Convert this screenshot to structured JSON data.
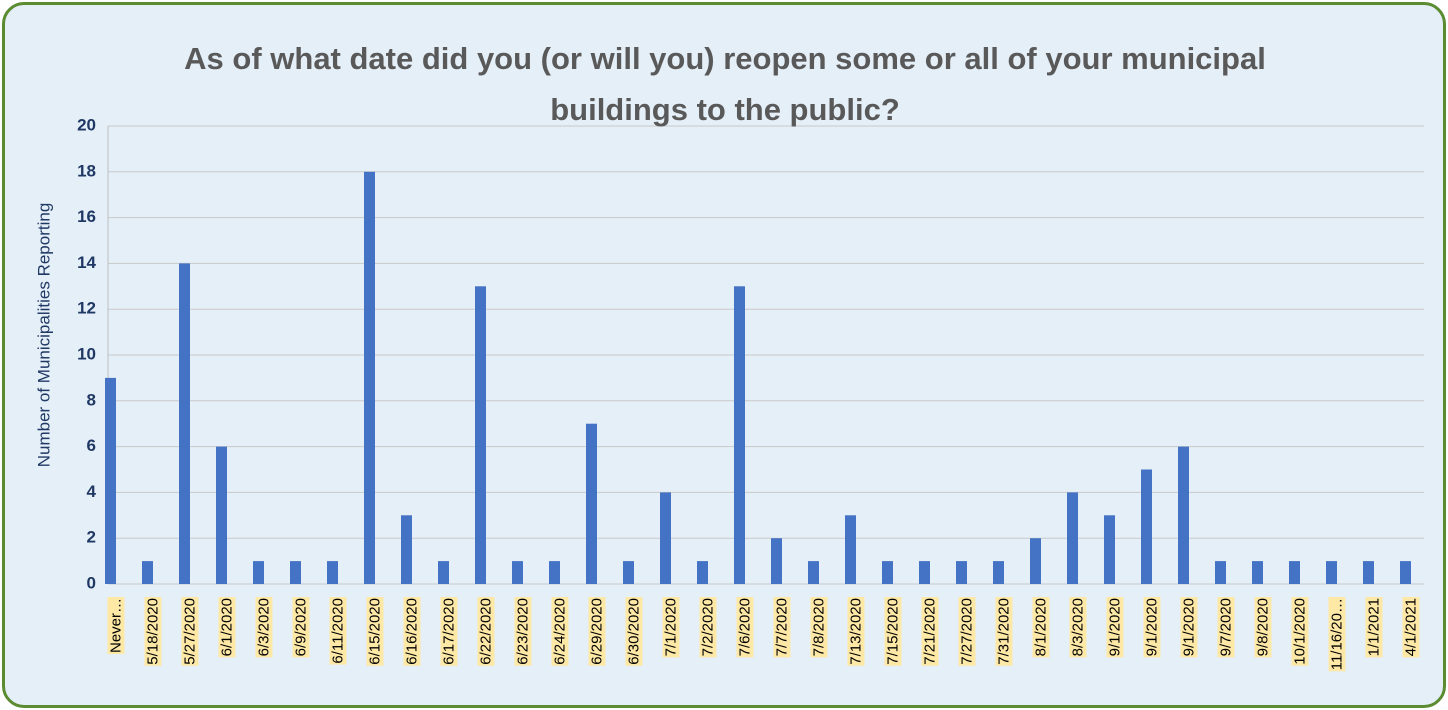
{
  "chart_data": {
    "type": "bar",
    "title": "As of what date did you (or will you) reopen some or all of your municipal buildings to the public?",
    "y_label": "Number of Municipalities Reporting",
    "categories": [
      "Never…",
      "5/18/2020",
      "5/27/2020",
      "6/1/2020",
      "6/3/2020",
      "6/9/2020",
      "6/11/2020",
      "6/15/2020",
      "6/16/2020",
      "6/17/2020",
      "6/22/2020",
      "6/23/2020",
      "6/24/2020",
      "6/29/2020",
      "6/30/2020",
      "7/1/2020",
      "7/2/2020",
      "7/6/2020",
      "7/7/2020",
      "7/8/2020",
      "7/13/2020",
      "7/15/2020",
      "7/21/2020",
      "7/27/2020",
      "7/31/2020",
      "8/1/2020",
      "8/3/2020",
      "9/1/2020",
      "9/1/2020",
      "9/1/2020",
      "9/7/2020",
      "9/8/2020",
      "10/1/2020",
      "11/16/20…",
      "1/1/2021",
      "4/1/2021"
    ],
    "values": [
      9,
      1,
      14,
      6,
      1,
      1,
      1,
      18,
      3,
      1,
      13,
      1,
      1,
      7,
      1,
      4,
      1,
      13,
      2,
      1,
      3,
      1,
      1,
      1,
      1,
      2,
      4,
      3,
      5,
      6,
      1,
      1,
      1,
      1,
      1,
      1
    ],
    "color": "#4472c4",
    "ylim": [
      0,
      20
    ],
    "yticks": [
      0,
      2,
      4,
      6,
      8,
      10,
      12,
      14,
      16,
      18,
      20
    ],
    "grid": true
  }
}
